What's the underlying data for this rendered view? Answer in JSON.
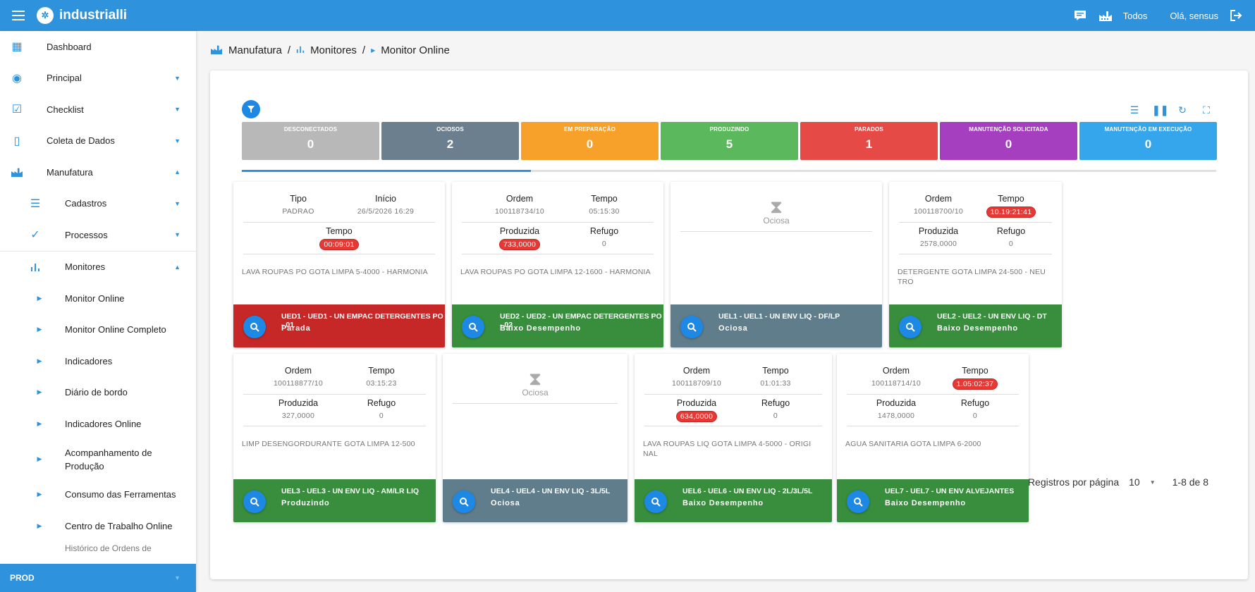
{
  "app": {
    "brand": "industrialli"
  },
  "topbar": {
    "plant_label": "Todos",
    "greeting": "Olá, sensus"
  },
  "sidebar": {
    "items": [
      {
        "label": "Dashboard"
      },
      {
        "label": "Principal"
      },
      {
        "label": "Checklist"
      },
      {
        "label": "Coleta de Dados"
      },
      {
        "label": "Manufatura"
      },
      {
        "label": "Cadastros"
      },
      {
        "label": "Processos"
      },
      {
        "label": "Monitores"
      },
      {
        "label": "Monitor Online"
      },
      {
        "label": "Monitor Online Completo"
      },
      {
        "label": "Indicadores"
      },
      {
        "label": "Diário de bordo"
      },
      {
        "label": "Indicadores Online"
      },
      {
        "label": "Acompanhamento de Produção"
      },
      {
        "label": "Consumo das Ferramentas"
      },
      {
        "label": "Centro de Trabalho Online"
      },
      {
        "label": "Histórico de Ordens de"
      }
    ],
    "environment": "PROD"
  },
  "breadcrumb": {
    "items": [
      "Manufatura",
      "Monitores",
      "Monitor Online"
    ],
    "separator": "/"
  },
  "status": [
    {
      "label": "DESCONECTADOS",
      "count": "0",
      "color": "#b8b8b8"
    },
    {
      "label": "OCIOSOS",
      "count": "2",
      "color": "#6c7f8e"
    },
    {
      "label": "EM PREPARAÇÃO",
      "count": "0",
      "color": "#f7a12a"
    },
    {
      "label": "PRODUZINDO",
      "count": "5",
      "color": "#5cb85c"
    },
    {
      "label": "PARADOS",
      "count": "1",
      "color": "#e64a46"
    },
    {
      "label": "MANUTENÇÃO SOLICITADA",
      "count": "0",
      "color": "#a63fbf"
    },
    {
      "label": "MANUTENÇÃO EM EXECUÇÃO",
      "count": "0",
      "color": "#35a5ec"
    }
  ],
  "progress": {
    "fraction": 0.297
  },
  "cards": [
    {
      "f1_label": "Tipo",
      "f1_value": "PADRAO",
      "f2_label": "Início",
      "f2_value": "26/5/2026 16:29",
      "f3_label": "Tempo",
      "f3_value": "00:09:01",
      "product": "LAVA ROUPAS PO GOTA LIMPA 5-4000 - HARMONIA",
      "title": "UED1 - UED1 - UN EMPAC DETERGENTES PO - 01",
      "status": "Parada",
      "color": "#c62828"
    },
    {
      "f1_label": "Ordem",
      "f1_value": "100118734/10",
      "f2_label": "Tempo",
      "f2_value": "05:15:30",
      "f3_label": "Produzida",
      "f3_value": "733,0000",
      "f4_label": "Refugo",
      "f4_value": "0",
      "product": "LAVA ROUPAS PO GOTA LIMPA 12-1600 - HARMONIA",
      "title": "UED2 - UED2 - UN EMPAC DETERGENTES PO - 02",
      "status": "Baixo Desempenho",
      "color": "#388e3c"
    },
    {
      "idle_label": "Ociosa",
      "title": "UEL1 - UEL1 - UN ENV LIQ - DF/LP",
      "status": "Ociosa",
      "color": "#607d8b"
    },
    {
      "f1_label": "Ordem",
      "f1_value": "100118700/10",
      "f2_label": "Tempo",
      "f2_value": "10.19:21:41",
      "f3_label": "Produzida",
      "f3_value": "2578,0000",
      "f4_label": "Refugo",
      "f4_value": "0",
      "product": "DETERGENTE GOTA LIMPA 24-500 - NEU",
      "product2": "TRO",
      "title": "UEL2 - UEL2 - UN ENV LIQ - DT",
      "status": "Baixo Desempenho",
      "color": "#388e3c"
    },
    {
      "f1_label": "Ordem",
      "f1_value": "100118877/10",
      "f2_label": "Tempo",
      "f2_value": "03:15:23",
      "f3_label": "Produzida",
      "f3_value": "327,0000",
      "f4_label": "Refugo",
      "f4_value": "0",
      "product": "LIMP DESENGORDURANTE GOTA LIMPA 12-500",
      "title": "UEL3 - UEL3 - UN ENV LIQ - AM/LR LIQ",
      "status": "Produzindo",
      "color": "#388e3c"
    },
    {
      "idle_label": "Ociosa",
      "title": "UEL4 - UEL4 - UN ENV LIQ - 3L/5L",
      "status": "Ociosa",
      "color": "#607d8b"
    },
    {
      "f1_label": "Ordem",
      "f1_value": "100118709/10",
      "f2_label": "Tempo",
      "f2_value": "01:01:33",
      "f3_label": "Produzida",
      "f3_value": "634,0000",
      "f4_label": "Refugo",
      "f4_value": "0",
      "product": "LAVA ROUPAS LIQ GOTA LIMPA 4-5000 - ORIGI",
      "product2": "NAL",
      "title": "UEL6 - UEL6 - UN ENV LIQ - 2L/3L/5L",
      "status": "Baixo Desempenho",
      "color": "#388e3c"
    },
    {
      "f1_label": "Ordem",
      "f1_value": "100118714/10",
      "f2_label": "Tempo",
      "f2_value": "1.05:02:37",
      "f3_label": "Produzida",
      "f3_value": "1478,0000",
      "f4_label": "Refugo",
      "f4_value": "0",
      "product": "AGUA SANITARIA GOTA LIMPA 6-2000",
      "title": "UEL7 - UEL7 - UN ENV ALVEJANTES",
      "status": "Baixo Desempenho",
      "color": "#388e3c"
    }
  ],
  "pagination": {
    "label": "Registros por página",
    "per_page": "10",
    "range": "1-8 de 8"
  },
  "icons": [
    "menu-icon",
    "logo-icon",
    "chat-icon",
    "factory-icon",
    "logout-icon",
    "filter-icon",
    "list-view-icon",
    "pause-icon",
    "refresh-icon",
    "fullscreen-icon",
    "search-icon",
    "hourglass-icon"
  ]
}
